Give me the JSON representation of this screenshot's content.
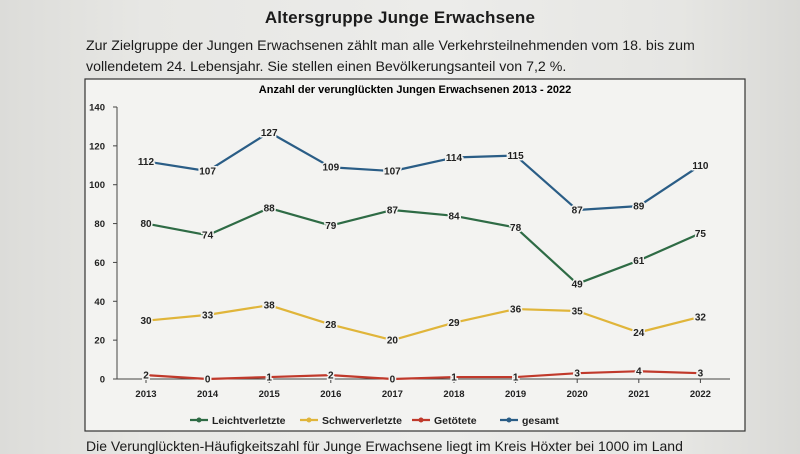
{
  "page": {
    "heading": "Altersgruppe Junge Erwachsene",
    "intro": "Zur Zielgruppe der Jungen Erwachsenen zählt man alle Verkehrsteilnehmenden vom 18. bis zum vollendetem 24. Lebensjahr. Sie stellen einen Bevölkerungsanteil von 7,2 %.",
    "footer": "Die Verunglückten-Häufigkeitszahl für Junge Erwachsene liegt im Kreis Höxter bei 1000 im Land"
  },
  "chart_data": {
    "type": "line",
    "title": "Anzahl der verunglückten Jungen Erwachsenen 2013 - 2022",
    "xlabel": "",
    "ylabel": "",
    "ylim": [
      0,
      140
    ],
    "yticks": [
      0,
      20,
      40,
      60,
      80,
      100,
      120,
      140
    ],
    "grid": false,
    "legend_position": "bottom",
    "categories": [
      "2013",
      "2014",
      "2015",
      "2016",
      "2017",
      "2018",
      "2019",
      "2020",
      "2021",
      "2022"
    ],
    "series": [
      {
        "name": "Leichtverletzte",
        "color": "#2e6b45",
        "values": [
          80,
          74,
          88,
          79,
          87,
          84,
          78,
          49,
          61,
          75
        ]
      },
      {
        "name": "Schwerverletzte",
        "color": "#e0b53a",
        "values": [
          30,
          33,
          38,
          28,
          20,
          29,
          36,
          35,
          24,
          32
        ]
      },
      {
        "name": "Getötete",
        "color": "#c0392b",
        "values": [
          2,
          0,
          1,
          2,
          0,
          1,
          1,
          3,
          4,
          3
        ]
      },
      {
        "name": "gesamt",
        "color": "#2a5d86",
        "values": [
          112,
          107,
          127,
          109,
          107,
          114,
          115,
          87,
          89,
          110
        ]
      }
    ]
  }
}
